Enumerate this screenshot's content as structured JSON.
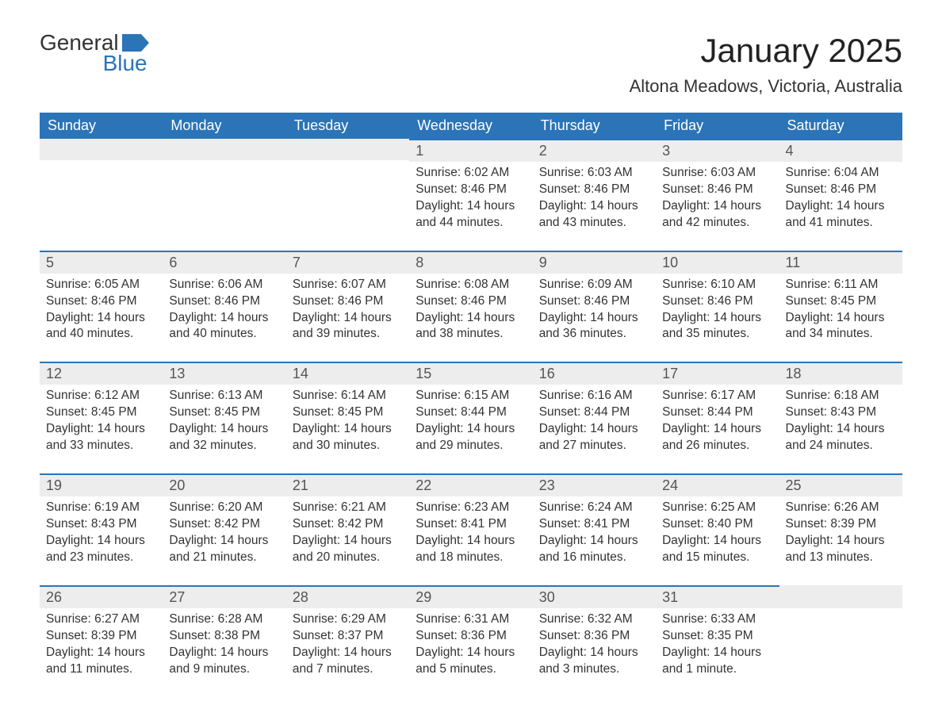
{
  "logo": {
    "word1": "General",
    "word2": "Blue"
  },
  "title": "January 2025",
  "location": "Altona Meadows, Victoria, Australia",
  "colors": {
    "header_bg": "#2b74b8",
    "header_text": "#ffffff",
    "daynum_bg": "#ededed",
    "daynum_border": "#2b74b8",
    "body_text": "#333333",
    "logo_accent": "#2b74b8"
  },
  "weekdays": [
    "Sunday",
    "Monday",
    "Tuesday",
    "Wednesday",
    "Thursday",
    "Friday",
    "Saturday"
  ],
  "weeks": [
    [
      null,
      null,
      null,
      {
        "day": "1",
        "sunrise": "Sunrise: 6:02 AM",
        "sunset": "Sunset: 8:46 PM",
        "daylight": "Daylight: 14 hours and 44 minutes."
      },
      {
        "day": "2",
        "sunrise": "Sunrise: 6:03 AM",
        "sunset": "Sunset: 8:46 PM",
        "daylight": "Daylight: 14 hours and 43 minutes."
      },
      {
        "day": "3",
        "sunrise": "Sunrise: 6:03 AM",
        "sunset": "Sunset: 8:46 PM",
        "daylight": "Daylight: 14 hours and 42 minutes."
      },
      {
        "day": "4",
        "sunrise": "Sunrise: 6:04 AM",
        "sunset": "Sunset: 8:46 PM",
        "daylight": "Daylight: 14 hours and 41 minutes."
      }
    ],
    [
      {
        "day": "5",
        "sunrise": "Sunrise: 6:05 AM",
        "sunset": "Sunset: 8:46 PM",
        "daylight": "Daylight: 14 hours and 40 minutes."
      },
      {
        "day": "6",
        "sunrise": "Sunrise: 6:06 AM",
        "sunset": "Sunset: 8:46 PM",
        "daylight": "Daylight: 14 hours and 40 minutes."
      },
      {
        "day": "7",
        "sunrise": "Sunrise: 6:07 AM",
        "sunset": "Sunset: 8:46 PM",
        "daylight": "Daylight: 14 hours and 39 minutes."
      },
      {
        "day": "8",
        "sunrise": "Sunrise: 6:08 AM",
        "sunset": "Sunset: 8:46 PM",
        "daylight": "Daylight: 14 hours and 38 minutes."
      },
      {
        "day": "9",
        "sunrise": "Sunrise: 6:09 AM",
        "sunset": "Sunset: 8:46 PM",
        "daylight": "Daylight: 14 hours and 36 minutes."
      },
      {
        "day": "10",
        "sunrise": "Sunrise: 6:10 AM",
        "sunset": "Sunset: 8:46 PM",
        "daylight": "Daylight: 14 hours and 35 minutes."
      },
      {
        "day": "11",
        "sunrise": "Sunrise: 6:11 AM",
        "sunset": "Sunset: 8:45 PM",
        "daylight": "Daylight: 14 hours and 34 minutes."
      }
    ],
    [
      {
        "day": "12",
        "sunrise": "Sunrise: 6:12 AM",
        "sunset": "Sunset: 8:45 PM",
        "daylight": "Daylight: 14 hours and 33 minutes."
      },
      {
        "day": "13",
        "sunrise": "Sunrise: 6:13 AM",
        "sunset": "Sunset: 8:45 PM",
        "daylight": "Daylight: 14 hours and 32 minutes."
      },
      {
        "day": "14",
        "sunrise": "Sunrise: 6:14 AM",
        "sunset": "Sunset: 8:45 PM",
        "daylight": "Daylight: 14 hours and 30 minutes."
      },
      {
        "day": "15",
        "sunrise": "Sunrise: 6:15 AM",
        "sunset": "Sunset: 8:44 PM",
        "daylight": "Daylight: 14 hours and 29 minutes."
      },
      {
        "day": "16",
        "sunrise": "Sunrise: 6:16 AM",
        "sunset": "Sunset: 8:44 PM",
        "daylight": "Daylight: 14 hours and 27 minutes."
      },
      {
        "day": "17",
        "sunrise": "Sunrise: 6:17 AM",
        "sunset": "Sunset: 8:44 PM",
        "daylight": "Daylight: 14 hours and 26 minutes."
      },
      {
        "day": "18",
        "sunrise": "Sunrise: 6:18 AM",
        "sunset": "Sunset: 8:43 PM",
        "daylight": "Daylight: 14 hours and 24 minutes."
      }
    ],
    [
      {
        "day": "19",
        "sunrise": "Sunrise: 6:19 AM",
        "sunset": "Sunset: 8:43 PM",
        "daylight": "Daylight: 14 hours and 23 minutes."
      },
      {
        "day": "20",
        "sunrise": "Sunrise: 6:20 AM",
        "sunset": "Sunset: 8:42 PM",
        "daylight": "Daylight: 14 hours and 21 minutes."
      },
      {
        "day": "21",
        "sunrise": "Sunrise: 6:21 AM",
        "sunset": "Sunset: 8:42 PM",
        "daylight": "Daylight: 14 hours and 20 minutes."
      },
      {
        "day": "22",
        "sunrise": "Sunrise: 6:23 AM",
        "sunset": "Sunset: 8:41 PM",
        "daylight": "Daylight: 14 hours and 18 minutes."
      },
      {
        "day": "23",
        "sunrise": "Sunrise: 6:24 AM",
        "sunset": "Sunset: 8:41 PM",
        "daylight": "Daylight: 14 hours and 16 minutes."
      },
      {
        "day": "24",
        "sunrise": "Sunrise: 6:25 AM",
        "sunset": "Sunset: 8:40 PM",
        "daylight": "Daylight: 14 hours and 15 minutes."
      },
      {
        "day": "25",
        "sunrise": "Sunrise: 6:26 AM",
        "sunset": "Sunset: 8:39 PM",
        "daylight": "Daylight: 14 hours and 13 minutes."
      }
    ],
    [
      {
        "day": "26",
        "sunrise": "Sunrise: 6:27 AM",
        "sunset": "Sunset: 8:39 PM",
        "daylight": "Daylight: 14 hours and 11 minutes."
      },
      {
        "day": "27",
        "sunrise": "Sunrise: 6:28 AM",
        "sunset": "Sunset: 8:38 PM",
        "daylight": "Daylight: 14 hours and 9 minutes."
      },
      {
        "day": "28",
        "sunrise": "Sunrise: 6:29 AM",
        "sunset": "Sunset: 8:37 PM",
        "daylight": "Daylight: 14 hours and 7 minutes."
      },
      {
        "day": "29",
        "sunrise": "Sunrise: 6:31 AM",
        "sunset": "Sunset: 8:36 PM",
        "daylight": "Daylight: 14 hours and 5 minutes."
      },
      {
        "day": "30",
        "sunrise": "Sunrise: 6:32 AM",
        "sunset": "Sunset: 8:36 PM",
        "daylight": "Daylight: 14 hours and 3 minutes."
      },
      {
        "day": "31",
        "sunrise": "Sunrise: 6:33 AM",
        "sunset": "Sunset: 8:35 PM",
        "daylight": "Daylight: 14 hours and 1 minute."
      },
      null
    ]
  ]
}
